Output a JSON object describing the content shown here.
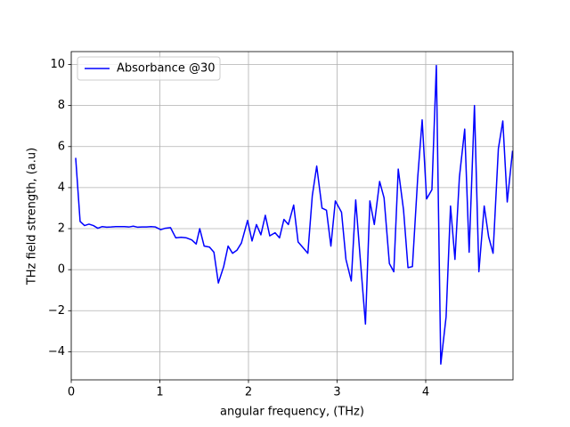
{
  "chart_data": {
    "type": "line",
    "xlabel": "angular frequency, (THz)",
    "ylabel": "THz field strength, (a.u)",
    "x": [
      0.05,
      0.1,
      0.15,
      0.2,
      0.25,
      0.3,
      0.35,
      0.4,
      0.45,
      0.5,
      0.55,
      0.6,
      0.65,
      0.7,
      0.75,
      0.8,
      0.85,
      0.9,
      0.95,
      1.01,
      1.06,
      1.12,
      1.18,
      1.24,
      1.3,
      1.36,
      1.41,
      1.45,
      1.5,
      1.56,
      1.61,
      1.66,
      1.72,
      1.77,
      1.82,
      1.87,
      1.92,
      1.99,
      2.04,
      2.09,
      2.14,
      2.19,
      2.24,
      2.3,
      2.35,
      2.4,
      2.45,
      2.51,
      2.56,
      2.61,
      2.67,
      2.72,
      2.77,
      2.83,
      2.88,
      2.93,
      2.98,
      3.05,
      3.1,
      3.16,
      3.21,
      3.26,
      3.32,
      3.37,
      3.42,
      3.48,
      3.53,
      3.59,
      3.64,
      3.69,
      3.75,
      3.8,
      3.85,
      3.91,
      3.96,
      4.01,
      4.07,
      4.12,
      4.17,
      4.23,
      4.28,
      4.33,
      4.38,
      4.44,
      4.49,
      4.55,
      4.6,
      4.66,
      4.71,
      4.76,
      4.82,
      4.87,
      4.92,
      4.98
    ],
    "series": [
      {
        "name": "Absorbance @30",
        "color": "#0000ff",
        "values": [
          5.45,
          2.35,
          2.15,
          2.22,
          2.15,
          2.02,
          2.1,
          2.07,
          2.08,
          2.1,
          2.1,
          2.1,
          2.08,
          2.12,
          2.07,
          2.08,
          2.08,
          2.1,
          2.08,
          1.95,
          2.02,
          2.05,
          1.55,
          1.58,
          1.55,
          1.45,
          1.25,
          2.0,
          1.15,
          1.1,
          0.85,
          -0.65,
          0.15,
          1.15,
          0.8,
          0.95,
          1.3,
          2.4,
          1.4,
          2.2,
          1.7,
          2.65,
          1.65,
          1.8,
          1.55,
          2.45,
          2.2,
          3.15,
          1.35,
          1.1,
          0.8,
          3.6,
          5.05,
          3.0,
          2.9,
          1.15,
          3.35,
          2.8,
          0.5,
          -0.55,
          3.4,
          0.6,
          -2.65,
          3.35,
          2.2,
          4.3,
          3.5,
          0.3,
          -0.1,
          4.9,
          2.9,
          0.1,
          0.15,
          4.5,
          7.3,
          3.45,
          3.9,
          9.95,
          -4.6,
          -2.3,
          3.1,
          0.5,
          4.5,
          6.85,
          0.85,
          8.0,
          -0.1,
          3.1,
          1.6,
          0.8,
          5.9,
          7.25,
          3.3,
          5.8
        ]
      }
    ],
    "xlim": [
      0,
      4.985
    ],
    "ylim": [
      -5.37,
      10.63
    ],
    "xticks": [
      0,
      1,
      2,
      3,
      4
    ],
    "yticks": [
      {
        "value": -4,
        "label": "−4"
      },
      {
        "value": -2,
        "label": "−2"
      },
      0,
      2,
      4,
      6,
      8,
      10
    ],
    "grid": true,
    "legend": "upper left"
  }
}
